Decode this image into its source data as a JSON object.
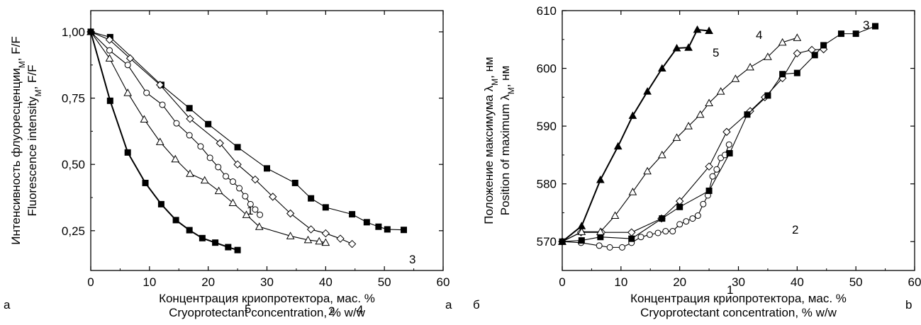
{
  "chart_data": [
    {
      "type": "line",
      "panel_labels": {
        "bottom_left": "a",
        "bottom_right": "a"
      },
      "ylabel_lines": [
        "Интенсивность флуоресценции, F/F",
        "Fluorescence intensity, F/F"
      ],
      "ylabel_subscript": "M",
      "xlabel_lines": [
        "Концентрация криопротектора, мас. %",
        "Cryoprotectant concentration, % w/w"
      ],
      "xlim": [
        0,
        60
      ],
      "ylim": [
        0.1,
        1.08
      ],
      "xticks": [
        0,
        10,
        20,
        30,
        40,
        50,
        60
      ],
      "yticks": [
        0.25,
        0.5,
        0.75,
        1.0
      ],
      "ytick_labels": [
        "0,25",
        "0,50",
        "0,75",
        "1,00"
      ],
      "series": [
        {
          "name": "1",
          "marker": "circle-open",
          "x": [
            0,
            3.2,
            6.3,
            9.5,
            12.2,
            14.6,
            16.8,
            18.7,
            20.3,
            21.7,
            23.0,
            24.2,
            25.3,
            26.3,
            27.2,
            28.0,
            28.8
          ],
          "y": [
            1.0,
            0.93,
            0.875,
            0.77,
            0.725,
            0.655,
            0.61,
            0.568,
            0.525,
            0.49,
            0.455,
            0.435,
            0.41,
            0.38,
            0.35,
            0.33,
            0.31
          ]
        },
        {
          "name": "2",
          "marker": "triangle-open",
          "x": [
            0,
            3.2,
            6.3,
            9.1,
            11.8,
            14.4,
            16.9,
            19.4,
            21.8,
            24.2,
            26.5,
            28.7,
            34.0,
            37.0,
            38.9,
            40.0
          ],
          "y": [
            1.0,
            0.9,
            0.77,
            0.67,
            0.585,
            0.52,
            0.465,
            0.44,
            0.4,
            0.355,
            0.31,
            0.265,
            0.23,
            0.215,
            0.21,
            0.205
          ]
        },
        {
          "name": "3",
          "marker": "square-filled",
          "x": [
            0,
            3.3,
            12.0,
            16.8,
            20.0,
            25.0,
            30.0,
            34.8,
            37.5,
            40.0,
            44.5,
            47.0,
            49.0,
            50.5,
            53.3
          ],
          "y": [
            1.0,
            0.98,
            0.8,
            0.712,
            0.652,
            0.565,
            0.485,
            0.43,
            0.372,
            0.338,
            0.312,
            0.282,
            0.265,
            0.255,
            0.253
          ]
        },
        {
          "name": "4",
          "marker": "diamond-open",
          "x": [
            0,
            3.2,
            6.7,
            11.8,
            16.9,
            22.0,
            25.0,
            28.0,
            31.0,
            34.0,
            37.5,
            40.0,
            42.5,
            44.5
          ],
          "y": [
            1.0,
            0.97,
            0.9,
            0.8,
            0.672,
            0.58,
            0.5,
            0.443,
            0.378,
            0.315,
            0.255,
            0.24,
            0.22,
            0.2
          ]
        },
        {
          "name": "5",
          "marker": "square-filled",
          "x": [
            0,
            3.3,
            6.3,
            9.3,
            12.0,
            14.5,
            16.8,
            19.0,
            21.2,
            23.4,
            25.0
          ],
          "y": [
            1.0,
            0.74,
            0.545,
            0.43,
            0.35,
            0.29,
            0.252,
            0.222,
            0.205,
            0.188,
            0.177
          ]
        }
      ]
    },
    {
      "type": "line",
      "panel_labels": {
        "bottom_left": "б",
        "bottom_right": "b"
      },
      "ylabel_lines": [
        "Положение максимума λ, нм",
        "Position of maximum λ, нм"
      ],
      "ylabel_subscript": "M",
      "xlabel_lines": [
        "Концентрация криопротектора, мас. %",
        "Cryoprotectant concentration, % w/w"
      ],
      "xlim": [
        0,
        60
      ],
      "ylim": [
        565,
        610
      ],
      "xticks": [
        0,
        10,
        20,
        30,
        40,
        50,
        60
      ],
      "yticks": [
        570,
        580,
        590,
        600,
        610
      ],
      "ytick_labels": [
        "570",
        "580",
        "590",
        "600",
        "610"
      ],
      "series": [
        {
          "name": "1",
          "marker": "circle-open",
          "x": [
            0,
            3.2,
            6.3,
            8.1,
            10.2,
            11.8,
            13.4,
            14.9,
            16.3,
            17.6,
            18.8,
            20.0,
            21.1,
            22.2,
            23.1,
            24.0,
            24.8,
            25.6,
            26.3,
            27.0,
            27.7,
            28.4
          ],
          "y": [
            570,
            569.8,
            569.3,
            569.0,
            569.0,
            569.8,
            570.8,
            571.2,
            571.5,
            571.8,
            571.8,
            573.0,
            573.5,
            574.0,
            574.5,
            576.5,
            578.0,
            581.3,
            582.5,
            584.5,
            585.0,
            586.8
          ]
        },
        {
          "name": "2",
          "marker": "diamond-open",
          "x": [
            0,
            3.2,
            6.7,
            11.8,
            16.9,
            20.0,
            25.0,
            28.0,
            32.0,
            34.5,
            37.5,
            40.0,
            42.5,
            44.5
          ],
          "y": [
            570,
            571.6,
            571.6,
            571.6,
            574.0,
            577.0,
            583.0,
            589.0,
            592.6,
            595.0,
            598.3,
            602.6,
            603.2,
            603.3
          ]
        },
        {
          "name": "3",
          "marker": "square-filled",
          "x": [
            0,
            3.3,
            6.5,
            11.8,
            17.0,
            20.0,
            25.0,
            28.5,
            31.5,
            35.0,
            37.5,
            40.0,
            43.0,
            44.5,
            47.5,
            50.0,
            53.3
          ],
          "y": [
            570,
            570.2,
            570.8,
            570.5,
            574.0,
            576.0,
            578.8,
            585.3,
            592.0,
            595.3,
            599.0,
            599.2,
            602.3,
            604.0,
            606.0,
            606.0,
            607.3
          ]
        },
        {
          "name": "4",
          "marker": "triangle-open",
          "x": [
            0,
            3.3,
            6.5,
            9.0,
            12.0,
            14.5,
            17.0,
            19.5,
            21.5,
            23.5,
            25.0,
            27.0,
            29.5,
            32.0,
            35.0,
            37.5,
            40.0
          ],
          "y": [
            570,
            571.7,
            571.7,
            574.5,
            578.6,
            582.2,
            585.0,
            588.0,
            590.0,
            592.0,
            594.0,
            596.0,
            598.2,
            600.2,
            602.0,
            604.5,
            605.3
          ]
        },
        {
          "name": "5",
          "marker": "triangle-filled",
          "x": [
            0,
            3.3,
            6.5,
            9.5,
            12.0,
            14.5,
            17.0,
            19.5,
            21.5,
            23.0,
            25.0
          ],
          "y": [
            570,
            572.7,
            580.7,
            586.5,
            591.8,
            596.0,
            600.0,
            603.5,
            603.6,
            606.7,
            606.5
          ]
        }
      ]
    }
  ]
}
